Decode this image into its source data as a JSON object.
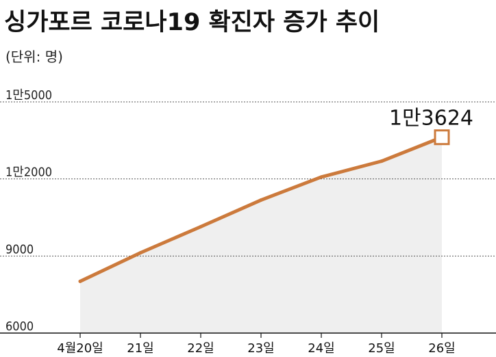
{
  "title": "싱가포르 코로나19  확진자 증가 추이",
  "unit_label": "(단위: 명)",
  "colors": {
    "line": "#cc7a3c",
    "area": "#efefef",
    "grid": "#555555",
    "axis": "#111111",
    "text": "#111111"
  },
  "chart_data": {
    "type": "area",
    "title": "싱가포르 코로나19  확진자 증가 추이",
    "unit": "(단위: 명)",
    "categories": [
      "4월20일",
      "21일",
      "22일",
      "23일",
      "24일",
      "25일",
      "26일"
    ],
    "series": [
      {
        "values": [
          8014,
          9125,
          10141,
          11178,
          12075,
          12693,
          13624
        ]
      }
    ],
    "yticks": [
      {
        "value": 6000,
        "label": "6000"
      },
      {
        "value": 9000,
        "label": "9000"
      },
      {
        "value": 12000,
        "label": "1만2000"
      },
      {
        "value": 15000,
        "label": "1만5000"
      }
    ],
    "ylim": [
      6000,
      15000
    ],
    "grid": true,
    "last_point_label": "1만3624"
  }
}
